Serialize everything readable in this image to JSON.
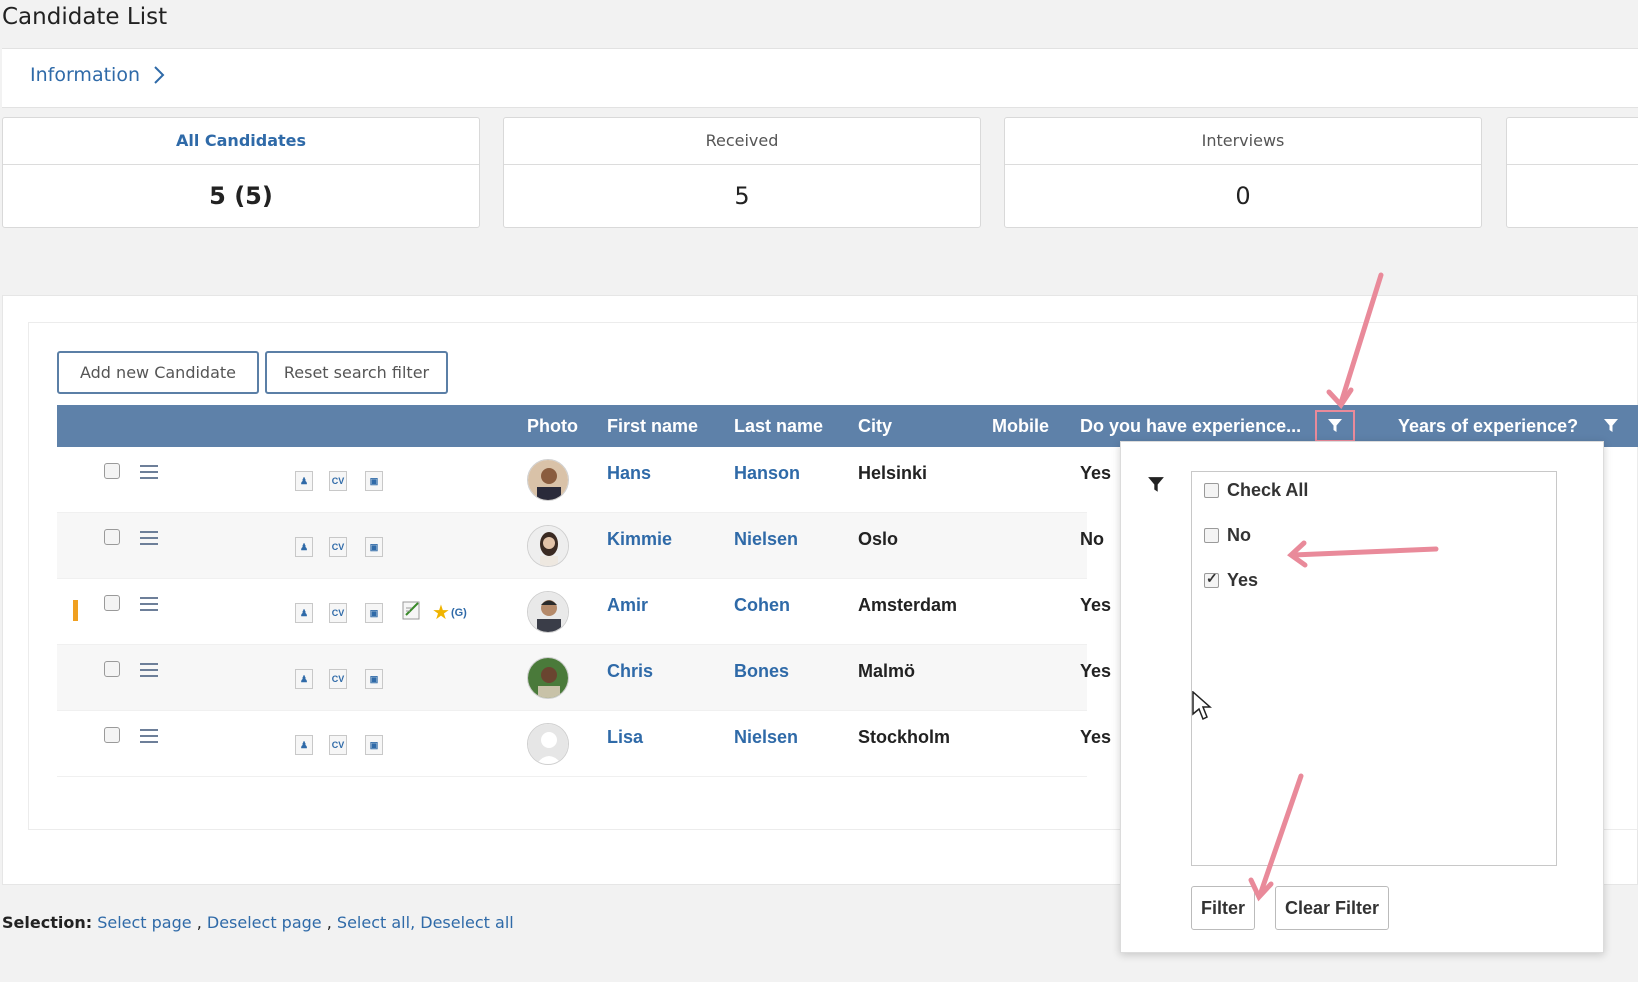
{
  "page": {
    "title": "Candidate List"
  },
  "info": {
    "label": "Information"
  },
  "stats": [
    {
      "label": "All Candidates",
      "value": "5 (5)"
    },
    {
      "label": "Received",
      "value": "5"
    },
    {
      "label": "Interviews",
      "value": "0"
    }
  ],
  "toolbar": {
    "add_label": "Add new Candidate",
    "reset_label": "Reset search filter"
  },
  "table": {
    "headers": {
      "photo": "Photo",
      "first_name": "First name",
      "last_name": "Last name",
      "city": "City",
      "mobile": "Mobile",
      "experience": "Do you have experience...",
      "years": "Years of experience?"
    },
    "rows": [
      {
        "first": "Hans",
        "last": "Hanson",
        "city": "Helsinki",
        "experience": "Yes"
      },
      {
        "first": "Kimmie",
        "last": "Nielsen",
        "city": "Oslo",
        "experience": "No"
      },
      {
        "first": "Amir",
        "last": "Cohen",
        "city": "Amsterdam",
        "experience": "Yes",
        "tag": "(G)"
      },
      {
        "first": "Chris",
        "last": "Bones",
        "city": "Malmö",
        "experience": "Yes"
      },
      {
        "first": "Lisa",
        "last": "Nielsen",
        "city": "Stockholm",
        "experience": "Yes"
      }
    ],
    "cv_label": "CV"
  },
  "filter_popup": {
    "options": [
      {
        "label": "Check All",
        "checked": false
      },
      {
        "label": "No",
        "checked": false
      },
      {
        "label": "Yes",
        "checked": true
      }
    ],
    "filter_label": "Filter",
    "clear_label": "Clear Filter"
  },
  "selection": {
    "label": "Selection:",
    "select_page": "Select page",
    "deselect_page": "Deselect page",
    "select_all": "Select all,",
    "deselect_all": "Deselect all",
    "sep1": ",",
    "sep2": ","
  },
  "colors": {
    "header_bg": "#5e81a9",
    "link": "#2f6aa8",
    "highlight": "#e98a9a",
    "marker": "#f0a020"
  }
}
